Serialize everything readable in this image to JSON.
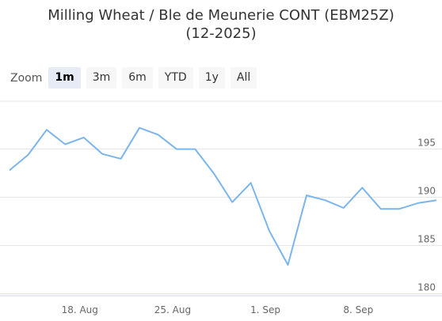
{
  "chart_data": {
    "type": "line",
    "title": [
      "Milling Wheat / Ble de Meunerie CONT (EBM25Z)",
      "(12-2025)"
    ],
    "zoom_label": "Zoom",
    "zoom_buttons": [
      "1m",
      "3m",
      "6m",
      "YTD",
      "1y",
      "All"
    ],
    "selected_button": "1m",
    "categories": [
      null,
      null,
      null,
      null,
      "18. Aug",
      null,
      null,
      null,
      null,
      "25. Aug",
      null,
      null,
      null,
      null,
      "1. Sep",
      null,
      null,
      null,
      null,
      "8. Sep",
      null,
      null,
      null,
      null
    ],
    "values": [
      192.8,
      194.4,
      197.0,
      195.5,
      196.2,
      194.5,
      194.0,
      197.2,
      196.5,
      195.0,
      195.0,
      192.5,
      189.5,
      191.5,
      186.5,
      183.0,
      190.2,
      189.7,
      188.9,
      191.0,
      188.8,
      188.8,
      189.4,
      189.7
    ],
    "color": "#7cb5ec",
    "ylim": [
      179.8,
      199.8
    ],
    "yticks": [
      180,
      185,
      190,
      195
    ],
    "grid": true
  }
}
